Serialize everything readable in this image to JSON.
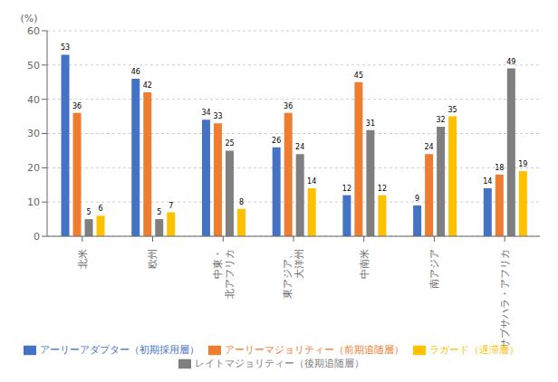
{
  "chart_data": {
    "type": "bar",
    "ylabel": "(%)",
    "categories": [
      "北米",
      "欧州",
      "中東・\n北アフリカ",
      "東アジア、\n大洋州",
      "中南米",
      "南アジア",
      "サブサハラ・アフリカ"
    ],
    "series": [
      {
        "name": "アーリーアダプター（初期採用層）",
        "color": "#4472C4",
        "values": [
          53,
          46,
          34,
          26,
          12,
          9,
          14
        ]
      },
      {
        "name": "アーリーマジョリティー（前期追随層）",
        "color": "#ED7D31",
        "values": [
          36,
          42,
          33,
          36,
          45,
          24,
          18
        ]
      },
      {
        "name": "レイトマジョリティー（後期追随層）",
        "color": "#7F7F7F",
        "values": [
          5,
          5,
          25,
          24,
          31,
          32,
          49
        ]
      },
      {
        "name": "ラガード（遅滞層）",
        "color": "#FFC000",
        "values": [
          6,
          7,
          8,
          14,
          12,
          35,
          19
        ]
      }
    ],
    "ylim": [
      0,
      60
    ],
    "yticks": [
      0,
      10,
      20,
      30,
      40,
      50,
      60
    ],
    "grid": true,
    "data_labels": true,
    "legend": "bottom"
  }
}
